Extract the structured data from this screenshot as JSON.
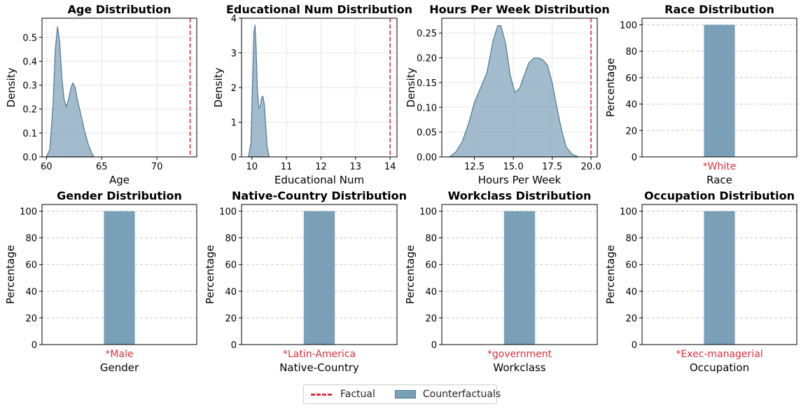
{
  "chart_data": [
    {
      "type": "area",
      "title": "Age Distribution",
      "xlabel": "Age",
      "ylabel": "Density",
      "xlim": [
        59.6,
        73.6
      ],
      "ylim": [
        0,
        0.58
      ],
      "xticks": [
        60,
        65,
        70
      ],
      "yticks": [
        0,
        0.1,
        0.2,
        0.3,
        0.4,
        0.5
      ],
      "ytick_labels": [
        "0.0",
        "0.1",
        "0.2",
        "0.3",
        "0.4",
        "0.5"
      ],
      "grid": true,
      "factual": 73,
      "counterfactual_density": {
        "x": [
          60.0,
          60.3,
          60.6,
          60.8,
          61.0,
          61.2,
          61.4,
          61.6,
          61.8,
          62.0,
          62.2,
          62.4,
          62.6,
          62.8,
          63.0,
          63.2,
          63.5,
          63.8,
          64.1,
          64.3
        ],
        "y": [
          0.0,
          0.03,
          0.22,
          0.45,
          0.545,
          0.48,
          0.33,
          0.24,
          0.21,
          0.24,
          0.285,
          0.31,
          0.29,
          0.24,
          0.2,
          0.16,
          0.1,
          0.05,
          0.015,
          0.0
        ]
      }
    },
    {
      "type": "area",
      "title": "Educational Num Distribution",
      "xlabel": "Educational Num",
      "ylabel": "Density",
      "xlim": [
        9.7,
        14.2
      ],
      "ylim": [
        0,
        4
      ],
      "xticks": [
        10,
        11,
        12,
        13,
        14
      ],
      "yticks": [
        0,
        1,
        2,
        3,
        4
      ],
      "ytick_labels": [
        "0",
        "1",
        "2",
        "3",
        "4"
      ],
      "grid": true,
      "factual": 14,
      "counterfactual_density": {
        "x": [
          9.9,
          9.97,
          10.02,
          10.06,
          10.09,
          10.12,
          10.16,
          10.2,
          10.24,
          10.28,
          10.32,
          10.36,
          10.4,
          10.44,
          10.5
        ],
        "y": [
          0.0,
          0.4,
          2.2,
          3.6,
          3.8,
          3.2,
          1.9,
          1.4,
          1.45,
          1.7,
          1.75,
          1.5,
          0.9,
          0.3,
          0.0
        ]
      }
    },
    {
      "type": "area",
      "title": "Hours Per Week Distribution",
      "xlabel": "Hours Per Week",
      "ylabel": "Density",
      "xlim": [
        10.4,
        20.4
      ],
      "ylim": [
        0,
        0.28
      ],
      "xticks": [
        12.5,
        15.0,
        17.5,
        20.0
      ],
      "xtick_labels": [
        "12.5",
        "15.0",
        "17.5",
        "20.0"
      ],
      "yticks": [
        0,
        0.05,
        0.1,
        0.15,
        0.2,
        0.25
      ],
      "ytick_labels": [
        "0.00",
        "0.05",
        "0.10",
        "0.15",
        "0.20",
        "0.25"
      ],
      "grid": true,
      "factual": 20,
      "counterfactual_density": {
        "x": [
          10.9,
          11.3,
          11.7,
          12.1,
          12.5,
          12.9,
          13.3,
          13.7,
          14.0,
          14.2,
          14.5,
          14.8,
          15.1,
          15.4,
          15.7,
          16.0,
          16.3,
          16.6,
          16.9,
          17.2,
          17.5,
          17.8,
          18.1,
          18.4,
          18.8,
          19.2
        ],
        "y": [
          0.0,
          0.01,
          0.03,
          0.065,
          0.11,
          0.14,
          0.17,
          0.235,
          0.265,
          0.265,
          0.23,
          0.165,
          0.13,
          0.138,
          0.165,
          0.19,
          0.199,
          0.2,
          0.196,
          0.185,
          0.15,
          0.1,
          0.055,
          0.02,
          0.005,
          0.0
        ]
      }
    },
    {
      "type": "bar",
      "title": "Race Distribution",
      "xlabel": "Race",
      "ylabel": "Percentage",
      "categories": [
        "*White"
      ],
      "values": [
        100
      ],
      "ylim": [
        0,
        105
      ],
      "yticks": [
        0,
        20,
        40,
        60,
        80,
        100
      ],
      "grid": true
    },
    {
      "type": "bar",
      "title": "Gender Distribution",
      "xlabel": "Gender",
      "ylabel": "Percentage",
      "categories": [
        "*Male"
      ],
      "values": [
        100
      ],
      "ylim": [
        0,
        105
      ],
      "yticks": [
        0,
        20,
        40,
        60,
        80,
        100
      ],
      "grid": true
    },
    {
      "type": "bar",
      "title": "Native-Country Distribution",
      "xlabel": "Native-Country",
      "ylabel": "Percentage",
      "categories": [
        "*Latin-America"
      ],
      "values": [
        100
      ],
      "ylim": [
        0,
        105
      ],
      "yticks": [
        0,
        20,
        40,
        60,
        80,
        100
      ],
      "grid": true
    },
    {
      "type": "bar",
      "title": "Workclass Distribution",
      "xlabel": "Workclass",
      "ylabel": "Percentage",
      "categories": [
        "*government"
      ],
      "values": [
        100
      ],
      "ylim": [
        0,
        105
      ],
      "yticks": [
        0,
        20,
        40,
        60,
        80,
        100
      ],
      "grid": true
    },
    {
      "type": "bar",
      "title": "Occupation Distribution",
      "xlabel": "Occupation",
      "ylabel": "Percentage",
      "categories": [
        "*Exec-managerial"
      ],
      "values": [
        100
      ],
      "ylim": [
        0,
        105
      ],
      "yticks": [
        0,
        20,
        40,
        60,
        80,
        100
      ],
      "grid": true
    }
  ],
  "legend": {
    "factual_label": "Factual",
    "counterfactual_label": "Counterfactuals"
  },
  "colors": {
    "fill": "#7aa0b8",
    "edge": "#4f7891",
    "factual": "#e0323c",
    "category_label": "#e0323c"
  }
}
